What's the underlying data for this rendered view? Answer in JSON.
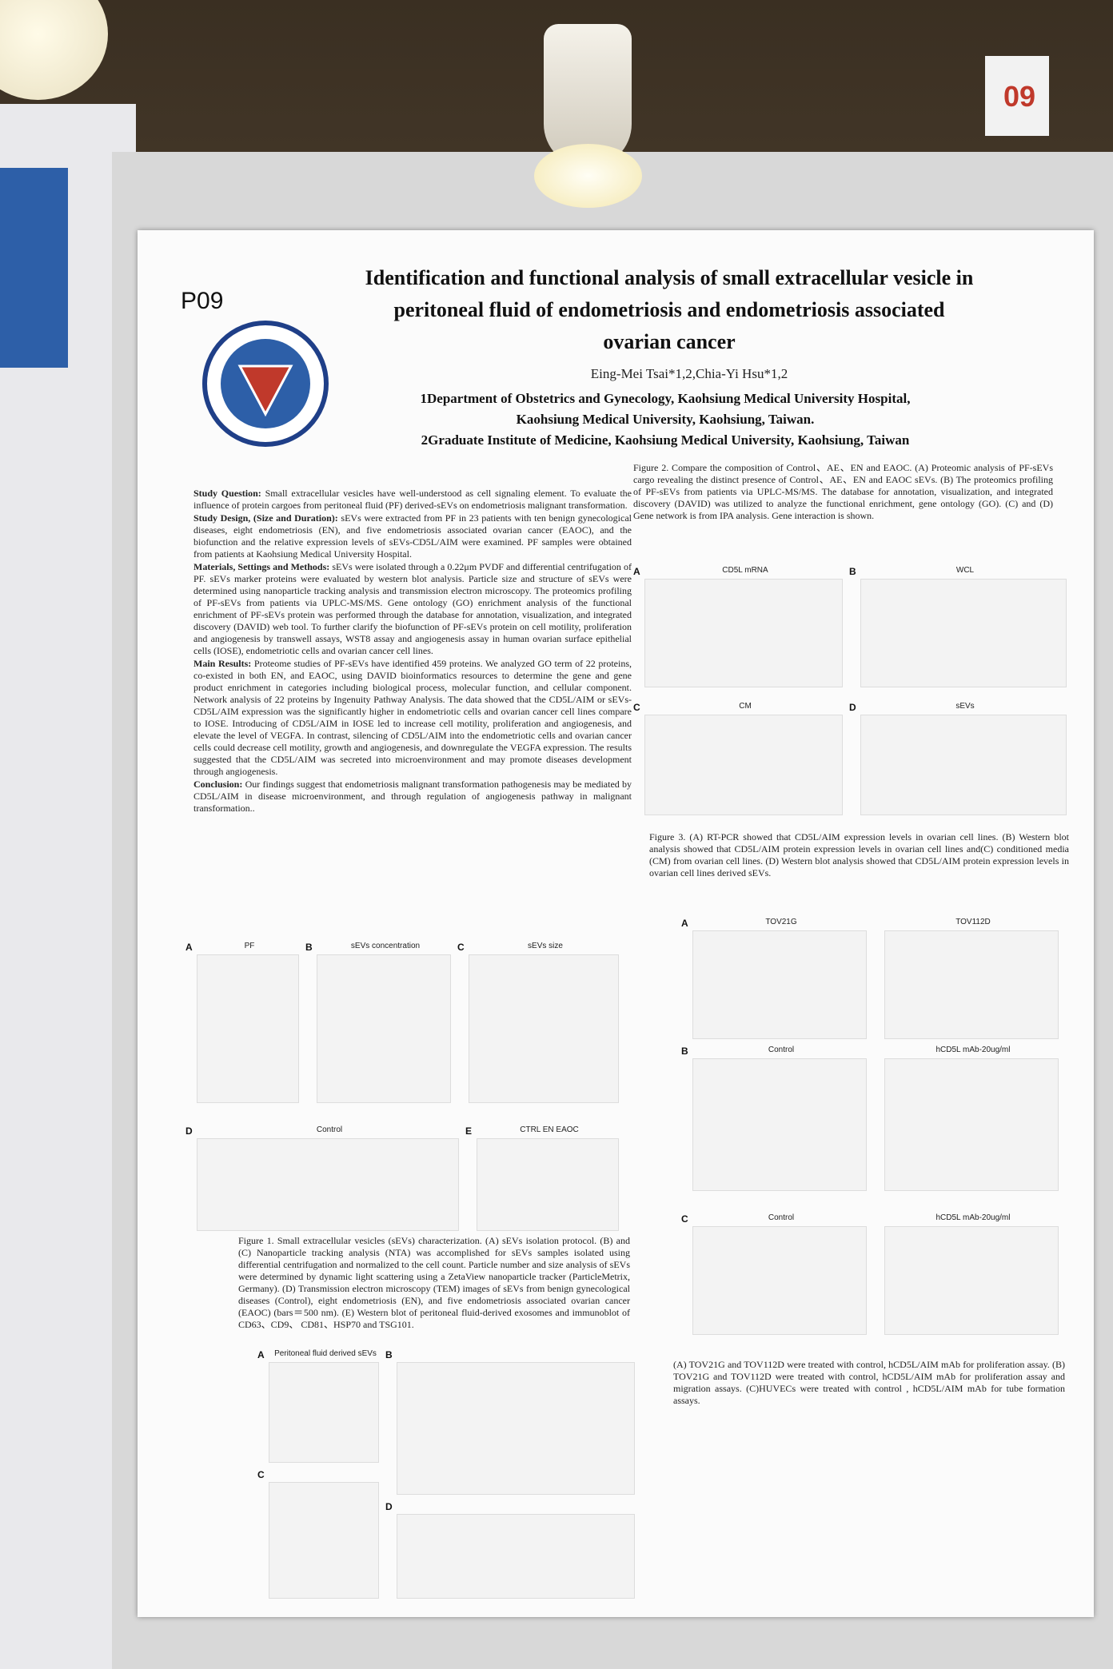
{
  "booth": "09",
  "poster_id": "P09",
  "title": [
    "Identification and functional analysis of small extracellular vesicle in",
    "peritoneal fluid of endometriosis and endometriosis associated",
    "ovarian cancer"
  ],
  "authors": "Eing-Mei Tsai*1,2,Chia-Yi Hsu*1,2",
  "affiliations": [
    "1Department of Obstetrics and Gynecology, Kaohsiung Medical University Hospital,",
    "Kaohsiung Medical University, Kaohsiung, Taiwan.",
    "2Graduate Institute of Medicine, Kaohsiung Medical University, Kaohsiung, Taiwan"
  ],
  "sections": [
    {
      "heading": "Study Question:",
      "text": "Small extracellular vesicles have well-understood as cell signaling element. To evaluate the influence of protein cargoes from peritoneal fluid (PF) derived-sEVs on endometriosis malignant transformation."
    },
    {
      "heading": "Study Design, (Size and Duration):",
      "text": "sEVs were extracted from PF in 23 patients with ten benign gynecological diseases, eight endometriosis (EN), and five endometriosis associated ovarian cancer (EAOC), and the biofunction and the relative expression levels of sEVs-CD5L/AIM were examined. PF samples were obtained from patients at Kaohsiung Medical University Hospital."
    },
    {
      "heading": "Materials, Settings and Methods:",
      "text": "sEVs were isolated through a 0.22μm PVDF and differential centrifugation of PF. sEVs marker proteins were evaluated by western blot analysis. Particle size and structure of sEVs were determined using nanoparticle tracking analysis and transmission electron microscopy. The proteomics profiling of PF-sEVs from patients via UPLC-MS/MS. Gene ontology (GO) enrichment analysis of the functional enrichment of PF-sEVs protein was performed through the database for annotation, visualization, and integrated discovery (DAVID) web tool. To further clarify the biofunction of PF-sEVs protein on cell motility, proliferation and angiogenesis by transwell assays, WST8 assay and angiogenesis assay in human ovarian surface epithelial cells (IOSE), endometriotic cells and ovarian cancer cell lines."
    },
    {
      "heading": "Main Results:",
      "text": "Proteome studies of PF-sEVs have identified 459 proteins. We analyzed GO term of 22 proteins, co-existed in both EN, and EAOC, using DAVID bioinformatics resources to determine the gene and gene product enrichment in categories including biological process, molecular function, and cellular component. Network analysis of 22 proteins by Ingenuity Pathway Analysis. The data showed that the CD5L/AIM or sEVs-CD5L/AIM expression was the significantly higher in endometriotic cells and ovarian cancer cell lines compare to IOSE. Introducing of CD5L/AIM in IOSE led to increase cell motility, proliferation and angiogenesis, and elevate the level of VEGFA. In contrast, silencing of CD5L/AIM into the endometriotic cells and ovarian cancer cells could decrease cell motility, growth and angiogenesis, and downregulate the VEGFA expression. The results suggested that the CD5L/AIM was secreted into microenvironment and may promote diseases development through angiogenesis."
    },
    {
      "heading": "Conclusion:",
      "text": "Our findings suggest that endometriosis malignant transformation pathogenesis may be mediated by CD5L/AIM in disease microenvironment, and through regulation of angiogenesis pathway in malignant transformation.."
    }
  ],
  "figure2_caption": "Figure 2. Compare the composition of Control、AE、EN and EAOC. (A) Proteomic analysis of PF-sEVs cargo revealing the distinct presence of Control、AE、EN and EAOC sEVs. (B) The proteomics profiling of PF-sEVs from patients via UPLC-MS/MS. The database for annotation, visualization, and integrated discovery (DAVID) was utilized to analyze the functional enrichment, gene ontology (GO). (C) and (D) Gene network is from IPA analysis. Gene interaction is shown.",
  "figure3_panels": [
    {
      "letter": "A",
      "title": "CD5L mRNA"
    },
    {
      "letter": "B",
      "title": "WCL"
    },
    {
      "letter": "C",
      "title": "CM"
    },
    {
      "letter": "D",
      "title": "sEVs"
    }
  ],
  "figure3_caption": "Figure 3. (A) RT-PCR showed that CD5L/AIM expression levels in ovarian cell lines. (B) Western blot analysis showed that CD5L/AIM protein expression levels in ovarian cell lines and(C) conditioned media (CM) from ovarian cell lines. (D) Western blot analysis showed that CD5L/AIM protein expression levels in ovarian cell lines derived sEVs.",
  "figure4_panels": [
    {
      "letter": "A",
      "title": "TOV21G"
    },
    {
      "letter": "",
      "title": "TOV112D"
    },
    {
      "letter": "B",
      "title": "Control"
    },
    {
      "letter": "",
      "title": "hCD5L mAb-20ug/ml"
    },
    {
      "letter": "C",
      "title": "Control"
    },
    {
      "letter": "",
      "title": "hCD5L mAb-20ug/ml"
    }
  ],
  "figure4_caption": "(A) TOV21G and TOV112D were treated with control, hCD5L/AIM mAb for proliferation assay. (B) TOV21G and TOV112D were treated with control, hCD5L/AIM mAb for proliferation assay and migration assays. (C)HUVECs were treated with control , hCD5L/AIM mAb for tube formation assays.",
  "figure1_panels": [
    {
      "letter": "A",
      "title": "PF"
    },
    {
      "letter": "B",
      "title": "sEVs concentration"
    },
    {
      "letter": "C",
      "title": "sEVs size"
    },
    {
      "letter": "D",
      "title": "Control"
    },
    {
      "letter": "E",
      "title": "CTRL  EN  EAOC"
    }
  ],
  "figure1_caption": "Figure 1. Small extracellular vesicles (sEVs) characterization. (A) sEVs isolation protocol. (B) and (C) Nanoparticle tracking analysis (NTA) was accomplished for sEVs samples isolated using differential centrifugation and normalized to the cell count. Particle number and size analysis of sEVs were determined by dynamic light scattering using a ZetaView nanoparticle tracker (ParticleMetrix, Germany). (D) Transmission electron microscopy (TEM) images of sEVs from benign gynecological diseases (Control), eight endometriosis (EN), and five endometriosis associated ovarian cancer (EAOC) (bars＝500 nm). (E) Western blot of peritoneal fluid-derived exosomes and immunoblot of CD63、CD9、 CD81、HSP70 and TSG101.",
  "figure2_panels": [
    {
      "letter": "A",
      "title": "Peritoneal fluid derived sEVs"
    },
    {
      "letter": "B",
      "title": ""
    },
    {
      "letter": "C",
      "title": ""
    },
    {
      "letter": "D",
      "title": ""
    }
  ]
}
